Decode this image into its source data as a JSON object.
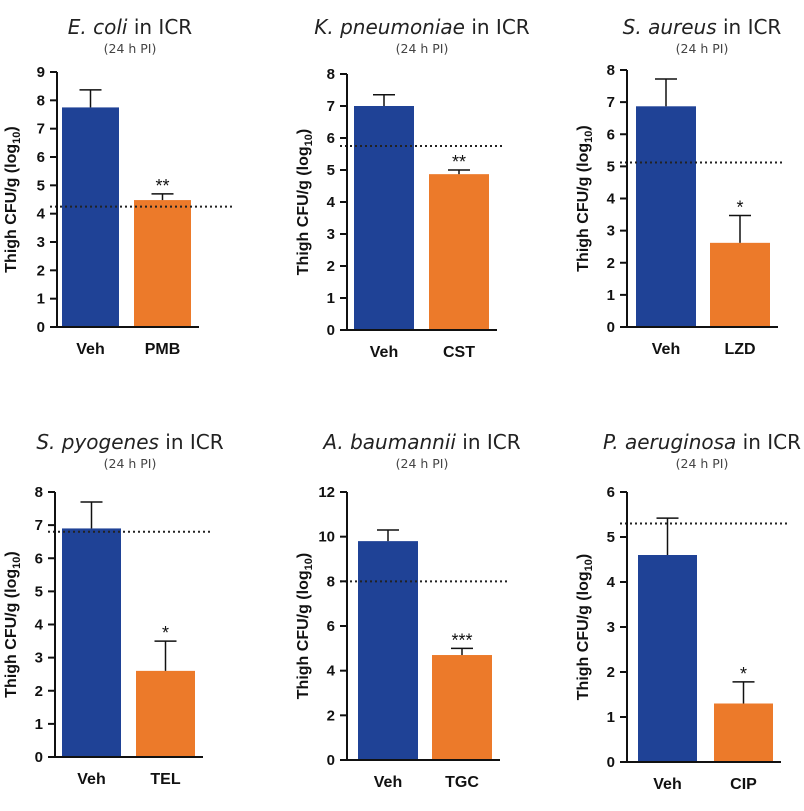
{
  "colors": {
    "veh": "#1f4296",
    "treat": "#ec7a2a",
    "axis": "#111111"
  },
  "chart_data": [
    {
      "type": "bar",
      "title_species": "E. coli",
      "title_suffix": " in ICR",
      "subtitle": "(24 h PI)",
      "ylabel_main": "Thigh CFU/g (log",
      "ylabel_sub": "10",
      "ylabel_end": ")",
      "ylim": [
        0,
        9
      ],
      "yticks": [
        0,
        1,
        2,
        3,
        4,
        5,
        6,
        7,
        8,
        9
      ],
      "categories": [
        "Veh",
        "PMB"
      ],
      "values": [
        7.75,
        4.48
      ],
      "errors": [
        0.62,
        0.22
      ],
      "significance": [
        "",
        "**"
      ],
      "threshold": 4.25
    },
    {
      "type": "bar",
      "title_species": "K. pneumoniae",
      "title_suffix": " in ICR",
      "subtitle": "(24 h PI)",
      "ylabel_main": "Thigh CFU/g (log",
      "ylabel_sub": "10",
      "ylabel_end": ")",
      "ylim": [
        0,
        8
      ],
      "yticks": [
        0,
        1,
        2,
        3,
        4,
        5,
        6,
        7,
        8
      ],
      "categories": [
        "Veh",
        "CST"
      ],
      "values": [
        7.0,
        4.87
      ],
      "errors": [
        0.35,
        0.13
      ],
      "significance": [
        "",
        "**"
      ],
      "threshold": 5.75
    },
    {
      "type": "bar",
      "title_species": "S. aureus",
      "title_suffix": " in ICR",
      "subtitle": "(24 h PI)",
      "ylabel_main": "Thigh CFU/g (log",
      "ylabel_sub": "10",
      "ylabel_end": ")",
      "ylim": [
        0,
        8
      ],
      "yticks": [
        0,
        1,
        2,
        3,
        4,
        5,
        6,
        7,
        8
      ],
      "categories": [
        "Veh",
        "LZD"
      ],
      "values": [
        6.87,
        2.62
      ],
      "errors": [
        0.85,
        0.85
      ],
      "significance": [
        "",
        "*"
      ],
      "threshold": 5.12
    },
    {
      "type": "bar",
      "title_species": "S. pyogenes",
      "title_suffix": " in ICR",
      "subtitle": "(24 h PI)",
      "ylabel_main": "Thigh CFU/g (log",
      "ylabel_sub": "10",
      "ylabel_end": ")",
      "ylim": [
        0,
        8
      ],
      "yticks": [
        0,
        1,
        2,
        3,
        4,
        5,
        6,
        7,
        8
      ],
      "categories": [
        "Veh",
        "TEL"
      ],
      "values": [
        6.9,
        2.6
      ],
      "errors": [
        0.8,
        0.9
      ],
      "significance": [
        "",
        "*"
      ],
      "threshold": 6.8
    },
    {
      "type": "bar",
      "title_species": "A. baumannii",
      "title_suffix": " in ICR",
      "subtitle": "(24 h PI)",
      "ylabel_main": "Thigh CFU/g (log",
      "ylabel_sub": "10",
      "ylabel_end": ")",
      "ylim": [
        0,
        12
      ],
      "yticks": [
        0,
        2,
        4,
        6,
        8,
        10,
        12
      ],
      "categories": [
        "Veh",
        "TGC"
      ],
      "values": [
        9.8,
        4.7
      ],
      "errors": [
        0.5,
        0.3
      ],
      "significance": [
        "",
        "***"
      ],
      "threshold": 8.0
    },
    {
      "type": "bar",
      "title_species": "P. aeruginosa",
      "title_suffix": " in ICR",
      "subtitle": "(24 h PI)",
      "ylabel_main": "Thigh CFU/g (log",
      "ylabel_sub": "10",
      "ylabel_end": ")",
      "ylim": [
        0,
        6
      ],
      "yticks": [
        0,
        1,
        2,
        3,
        4,
        5,
        6
      ],
      "categories": [
        "Veh",
        "CIP"
      ],
      "values": [
        4.6,
        1.3
      ],
      "errors": [
        0.82,
        0.48
      ],
      "significance": [
        "",
        "*"
      ],
      "threshold": 5.3
    }
  ]
}
